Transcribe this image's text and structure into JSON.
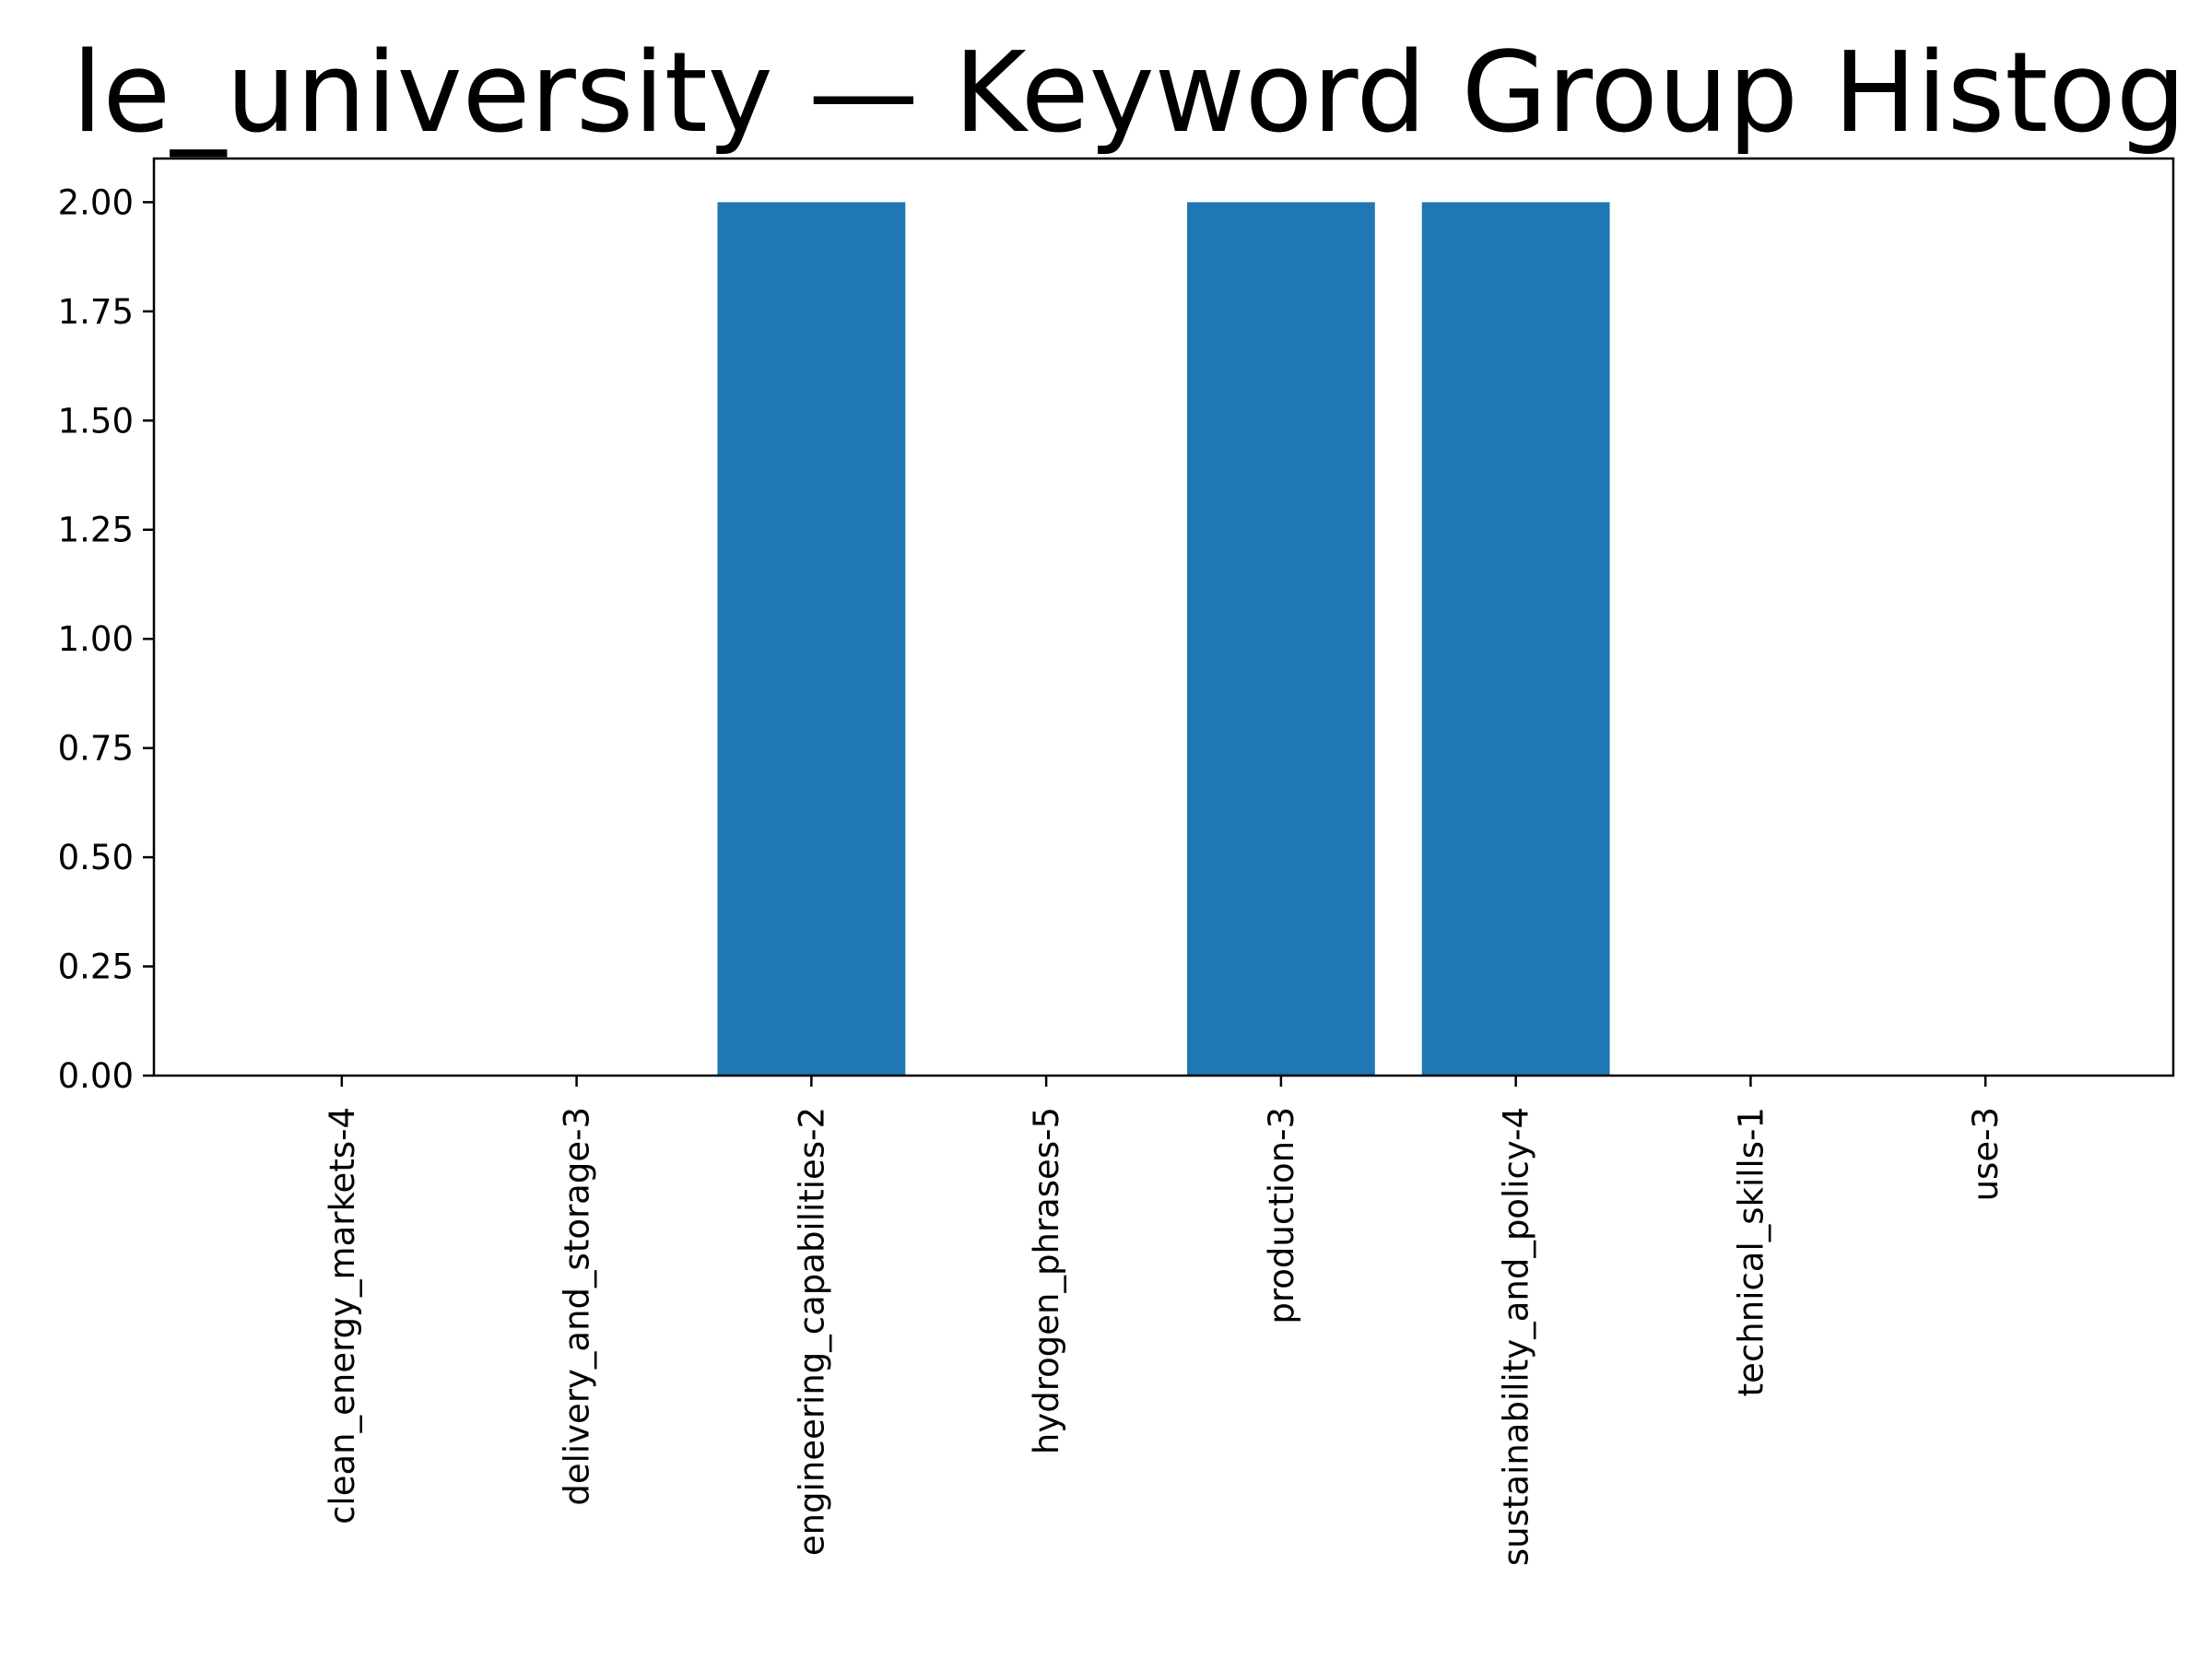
{
  "chart_data": {
    "type": "bar",
    "title": "le_university — Keyword Group Histog",
    "xlabel": "",
    "ylabel": "",
    "categories": [
      "clean_energy_markets-4",
      "delivery_and_storage-3",
      "engineering_capabilities-2",
      "hydrogen_phrases-5",
      "production-3",
      "sustainability_and_policy-4",
      "technical_skills-1",
      "use-3"
    ],
    "values": [
      0,
      0,
      2,
      0,
      2,
      2,
      0,
      0
    ],
    "ylim": [
      0,
      2.1
    ],
    "yticks": [
      "0.00",
      "0.25",
      "0.50",
      "0.75",
      "1.00",
      "1.25",
      "1.50",
      "1.75",
      "2.00"
    ],
    "grid": false,
    "legend": "none",
    "bar_color": "#1f77b4"
  }
}
